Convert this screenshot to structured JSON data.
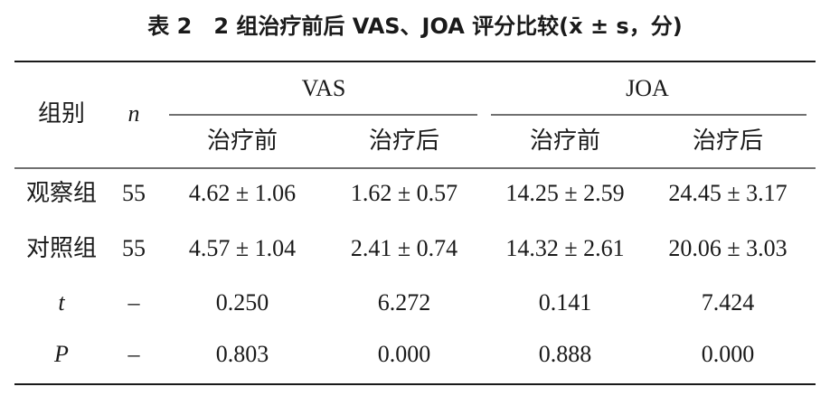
{
  "title": "表 2　2 组治疗前后 VAS、JOA 评分比较(x̄ ± s，分)",
  "table": {
    "header": {
      "group": "组别",
      "n": "n",
      "vas": "VAS",
      "joa": "JOA",
      "sub": [
        "治疗前",
        "治疗后",
        "治疗前",
        "治疗后"
      ]
    },
    "rows": [
      [
        "观察组",
        "55",
        "4.62 ± 1.06",
        "1.62 ± 0.57",
        "14.25 ± 2.59",
        "24.45 ± 3.17"
      ],
      [
        "对照组",
        "55",
        "4.57 ± 1.04",
        "2.41 ± 0.74",
        "14.32 ± 2.61",
        "20.06 ± 3.03"
      ],
      [
        "t",
        "–",
        "0.250",
        "6.272",
        "0.141",
        "7.424"
      ],
      [
        "P",
        "–",
        "0.803",
        "0.000",
        "0.888",
        "0.000"
      ]
    ]
  }
}
